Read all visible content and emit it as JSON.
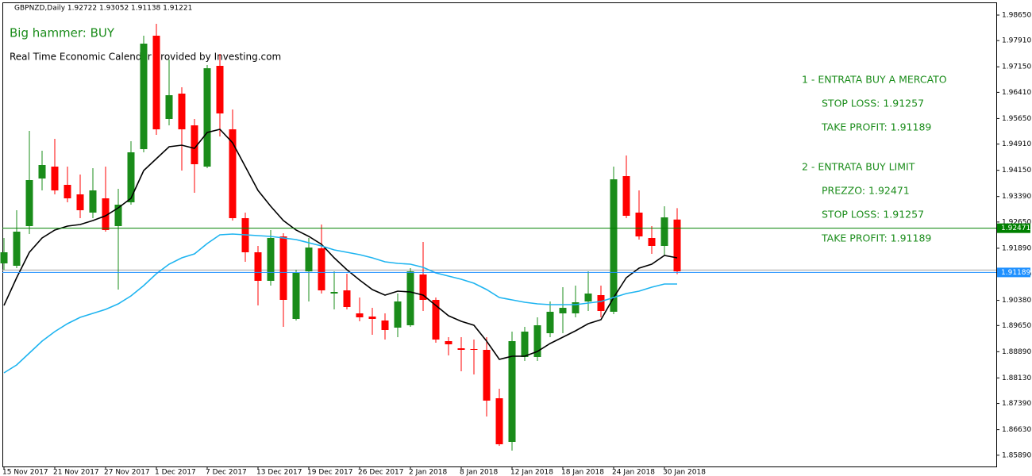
{
  "chart_data": {
    "type": "candlestick",
    "title": "GBPNZD,Daily  1.92722 1.93052 1.91138 1.91221",
    "annotations": [
      "Big hammer: BUY",
      "Real Time Economic Calendar provided by Investing.com"
    ],
    "signals": [
      "1 - ENTRATA BUY A MERCATO",
      "STOP LOSS: 1.91257",
      "TAKE PROFIT: 1.91189",
      "2 - ENTRATA BUY LIMIT",
      "PREZZO: 1.92471",
      "STOP LOSS: 1.91257",
      "TAKE PROFIT: 1.91189"
    ],
    "bull_color": "#1a8c1a",
    "bear_color": "#ff0000",
    "categories": [
      "15 Nov 2017",
      null,
      null,
      null,
      "21 Nov 2017",
      null,
      null,
      null,
      "27 Nov 2017",
      null,
      null,
      null,
      "1 Dec 2017",
      null,
      null,
      null,
      "7 Dec 2017",
      null,
      null,
      null,
      "13 Dec 2017",
      null,
      null,
      null,
      "19 Dec 2017",
      null,
      null,
      null,
      "26 Dec 2017",
      null,
      null,
      null,
      "2 Jan 2018",
      null,
      null,
      null,
      "8 Jan 2018",
      null,
      null,
      null,
      "12 Jan 2018",
      null,
      null,
      null,
      "18 Jan 2018",
      null,
      null,
      null,
      "24 Jan 2018",
      null,
      null,
      null,
      "30 Jan 2018",
      null
    ],
    "open": [
      1.91451,
      1.91382,
      1.92532,
      1.93912,
      1.94257,
      1.93728,
      1.93452,
      1.92923,
      1.93337,
      1.92532,
      1.93222,
      1.94763,
      1.98052,
      1.95637,
      1.96373,
      1.95453,
      1.94257,
      1.97178,
      1.95338,
      1.92762,
      1.91773,
      1.90945,
      1.92233,
      1.89841,
      1.91221,
      1.91888,
      1.90577,
      1.90669,
      1.90002,
      1.8991,
      1.89795,
      1.89588,
      1.89657,
      1.91129,
      1.90393,
      1.89197,
      1.8899,
      1.88967,
      1.88944,
      1.87541,
      1.86276,
      1.88737,
      1.88737,
      1.89427,
      1.90002,
      1.90002,
      1.90347,
      1.90531,
      1.90048,
      1.93981,
      1.92923,
      1.92187,
      1.91957,
      1.92722
    ],
    "high": [
      1.92187,
      1.92992,
      1.95292,
      1.94717,
      1.95062,
      1.94257,
      1.94027,
      1.94211,
      1.94257,
      1.93613,
      1.94993,
      1.98052,
      1.98397,
      1.97362,
      1.96557,
      1.95637,
      1.97201,
      1.97523,
      1.95913,
      1.92923,
      1.91957,
      1.92417,
      1.92325,
      1.91267,
      1.92187,
      1.92578,
      1.91221,
      1.91152,
      1.90462,
      1.90163,
      1.90002,
      1.90577,
      1.91313,
      1.92072,
      1.90462,
      1.89312,
      1.89312,
      1.89243,
      1.89312,
      1.87817,
      1.89473,
      1.89611,
      1.89887,
      1.90347,
      1.90761,
      1.90807,
      1.91221,
      1.90807,
      1.94257,
      1.94579,
      1.93567,
      1.92532,
      1.93107,
      1.93052
    ],
    "low": [
      1.91267,
      1.91313,
      1.92302,
      1.93567,
      1.93452,
      1.93222,
      1.92762,
      1.92762,
      1.92371,
      1.90692,
      1.93153,
      1.94671,
      1.95177,
      1.95453,
      1.94142,
      1.93498,
      1.94211,
      1.95131,
      1.92693,
      1.91497,
      1.90232,
      1.90807,
      1.89611,
      1.89795,
      1.90347,
      1.90577,
      1.90117,
      1.90117,
      1.89772,
      1.89381,
      1.89243,
      1.89312,
      1.89611,
      1.90071,
      1.89151,
      1.88783,
      1.88323,
      1.88231,
      1.87012,
      1.86161,
      1.86023,
      1.88622,
      1.88622,
      1.89312,
      1.89427,
      1.89887,
      1.90071,
      1.89887,
      1.89979,
      1.92762,
      1.92141,
      1.91727,
      1.91684,
      1.91138
    ],
    "close": [
      1.91773,
      1.92371,
      1.93866,
      1.94303,
      1.93567,
      1.93337,
      1.92992,
      1.93567,
      1.92417,
      1.93153,
      1.94671,
      1.97822,
      1.95338,
      1.96327,
      1.95338,
      1.94326,
      1.97109,
      1.95798,
      1.92762,
      1.91773,
      1.90945,
      1.92187,
      1.90393,
      1.91175,
      1.91911,
      1.90669,
      1.90623,
      1.90186,
      1.89887,
      1.89841,
      1.89519,
      1.90347,
      1.91221,
      1.90393,
      1.89243,
      1.89105,
      1.88944,
      1.88944,
      1.87472,
      1.86207,
      1.89197,
      1.89473,
      1.89657,
      1.90048,
      1.90163,
      1.90324,
      1.90577,
      1.90071,
      1.93889,
      1.92831,
      1.92233,
      1.91957,
      1.92785,
      1.91221
    ],
    "ma": [
      {
        "color": "#000000",
        "values": [
          1.90232,
          1.91037,
          1.91773,
          1.92187,
          1.92417,
          1.92532,
          1.92578,
          1.92693,
          1.92831,
          1.93061,
          1.93337,
          1.94142,
          1.94487,
          1.94832,
          1.94878,
          1.94786,
          1.95246,
          1.95338,
          1.94947,
          1.94257,
          1.93567,
          1.93107,
          1.92693,
          1.92417,
          1.92233,
          1.92003,
          1.91612,
          1.91267,
          1.90968,
          1.90692,
          1.90531,
          1.90646,
          1.90623,
          1.90531,
          1.90232,
          1.89933,
          1.89772,
          1.89657,
          1.89197,
          1.88668,
          1.8876,
          1.8876,
          1.88898,
          1.89128,
          1.89312,
          1.89496,
          1.89703,
          1.89818,
          1.90462,
          1.91037,
          1.91313,
          1.91428,
          1.91681,
          1.91612
        ]
      },
      {
        "color": "#1eb4f0",
        "values": [
          1.88277,
          1.88507,
          1.88852,
          1.89197,
          1.89473,
          1.89703,
          1.89887,
          1.90002,
          1.90117,
          1.90278,
          1.90508,
          1.90807,
          1.91152,
          1.91428,
          1.91612,
          1.91727,
          1.92026,
          1.92279,
          1.92302,
          1.92279,
          1.92256,
          1.92233,
          1.92187,
          1.92141,
          1.92049,
          1.91957,
          1.91842,
          1.91773,
          1.91704,
          1.91612,
          1.91497,
          1.91451,
          1.91428,
          1.91336,
          1.91175,
          1.91083,
          1.90991,
          1.90876,
          1.90692,
          1.90462,
          1.90393,
          1.90324,
          1.90278,
          1.90255,
          1.90255,
          1.90255,
          1.90301,
          1.90347,
          1.90462,
          1.90577,
          1.90646,
          1.90761,
          1.90853,
          1.90853
        ]
      }
    ],
    "levels": [
      {
        "value": 1.91257,
        "color": "#a0a0a0"
      }
    ],
    "price_labels": [
      {
        "value": 1.92471,
        "color": "#008000"
      },
      {
        "value": 1.91189,
        "color": "#1e90ff"
      }
    ],
    "ylim": [
      1.85563,
      1.99018
    ],
    "yticks": [
      {
        "value": 1.9865,
        "label": "1.98650"
      },
      {
        "value": 1.9791,
        "label": "1.97910"
      },
      {
        "value": 1.9715,
        "label": "1.97150"
      },
      {
        "value": 1.9641,
        "label": "1.96410"
      },
      {
        "value": 1.9565,
        "label": "1.95650"
      },
      {
        "value": 1.9491,
        "label": "1.94910"
      },
      {
        "value": 1.9415,
        "label": "1.94150"
      },
      {
        "value": 1.9339,
        "label": "1.93390"
      },
      {
        "value": 1.9265,
        "label": "1.92650"
      },
      {
        "value": 1.9189,
        "label": "1.91890"
      },
      {
        "value": 1.9113,
        "label": "1.91130"
      },
      {
        "value": 1.9038,
        "label": "1.90380"
      },
      {
        "value": 1.8965,
        "label": "1.89650"
      },
      {
        "value": 1.8889,
        "label": "1.88890"
      },
      {
        "value": 1.8813,
        "label": "1.88130"
      },
      {
        "value": 1.8739,
        "label": "1.87390"
      },
      {
        "value": 1.8663,
        "label": "1.86630"
      },
      {
        "value": 1.8589,
        "label": "1.85890"
      }
    ]
  }
}
